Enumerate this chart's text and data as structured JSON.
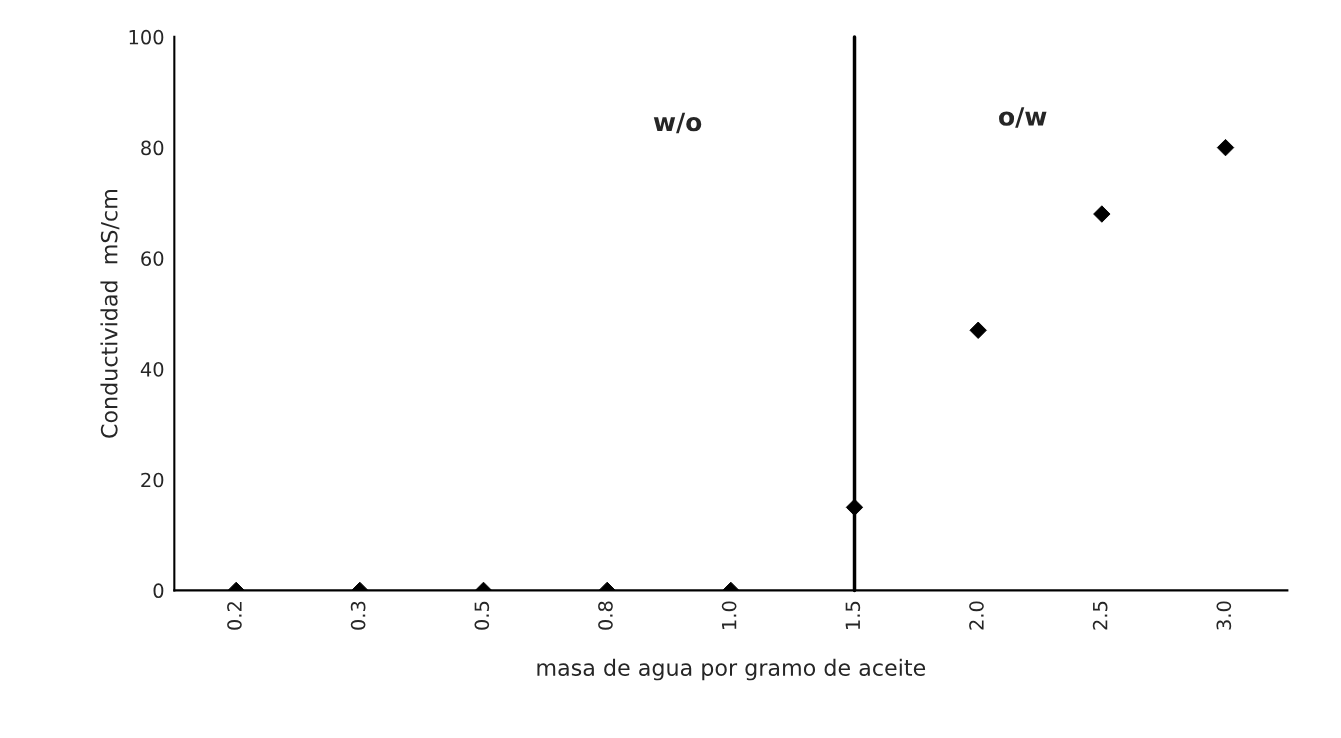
{
  "chart_data": {
    "type": "scatter",
    "xlabel": "masa de agua por gramo de aceite",
    "ylabel": "Conductividad  mS/cm",
    "categories": [
      "0.2",
      "0.3",
      "0.5",
      "0.8",
      "1.0",
      "1.5",
      "2.0",
      "2.5",
      "3.0"
    ],
    "series": [
      {
        "color": "#000000",
        "values": [
          0,
          0,
          0,
          0,
          0,
          15,
          47,
          68,
          80
        ]
      }
    ],
    "marker": "diamond",
    "ylim": [
      0,
      100
    ],
    "yticks": [
      0,
      20,
      40,
      60,
      80,
      100
    ],
    "grid": false,
    "legend": false,
    "ref_lines": [
      {
        "axis": "x",
        "value": "1.5",
        "color": "#000000"
      }
    ],
    "annotations": [
      "w/o",
      "o/w"
    ]
  }
}
